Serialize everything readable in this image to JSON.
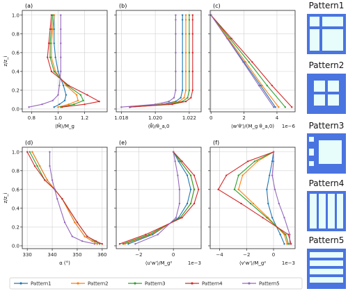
{
  "colors": {
    "Pattern1": "#1f77b4",
    "Pattern2": "#ff7f0e",
    "Pattern3": "#2ca02c",
    "Pattern4": "#d62728",
    "Pattern5": "#9467bd",
    "pattern_bg": "#4a74e0",
    "pattern_cell": "#e6fdfb"
  },
  "patterns": [
    {
      "name": "Pattern1",
      "layout": "2x2 unequal blocks"
    },
    {
      "name": "Pattern2",
      "layout": "2x2 equal blocks"
    },
    {
      "name": "Pattern3",
      "layout": "1 large + 3 small blocks"
    },
    {
      "name": "Pattern4",
      "layout": "4 vertical strips"
    },
    {
      "name": "Pattern5",
      "layout": "4 horizontal strips"
    }
  ],
  "legend": [
    "Pattern1",
    "Pattern2",
    "Pattern3",
    "Pattern4",
    "Pattern5"
  ],
  "chart_data": [
    {
      "id": "a",
      "panel_label": "(a)",
      "type": "line",
      "xlabel": "⟨M̄⟩/M_g",
      "ylabel": "z/z_i",
      "xlim": [
        0.73,
        1.37
      ],
      "ylim": [
        -0.03,
        1.05
      ],
      "xticks": [
        0.8,
        1.0,
        1.2
      ],
      "xticklabels": [
        "0.8",
        "1.0",
        "1.2"
      ],
      "yticks": [
        0.0,
        0.2,
        0.4,
        0.6,
        0.8,
        1.0
      ],
      "yticklabels": [
        "0.0",
        "0.2",
        "0.4",
        "0.6",
        "0.8",
        "1.0"
      ],
      "grid": true,
      "exponent": "",
      "series": [
        {
          "name": "Pattern1",
          "x": [
            0.97,
            1.01,
            1.05,
            1.06,
            1.04,
            1.0,
            0.98,
            0.97,
            0.97,
            0.97
          ],
          "y": [
            0.02,
            0.05,
            0.09,
            0.15,
            0.25,
            0.4,
            0.55,
            0.7,
            0.85,
            1.0
          ]
        },
        {
          "name": "Pattern2",
          "x": [
            1.0,
            1.08,
            1.15,
            1.14,
            1.06,
            0.98,
            0.95,
            0.95,
            0.96,
            0.97
          ],
          "y": [
            0.02,
            0.05,
            0.09,
            0.15,
            0.25,
            0.4,
            0.55,
            0.7,
            0.85,
            1.0
          ]
        },
        {
          "name": "Pattern3",
          "x": [
            1.02,
            1.12,
            1.19,
            1.17,
            1.07,
            0.97,
            0.94,
            0.94,
            0.95,
            0.96
          ],
          "y": [
            0.02,
            0.05,
            0.09,
            0.15,
            0.25,
            0.4,
            0.55,
            0.7,
            0.85,
            1.0
          ]
        },
        {
          "name": "Pattern4",
          "x": [
            1.03,
            1.2,
            1.31,
            1.22,
            1.08,
            0.95,
            0.92,
            0.93,
            0.94,
            0.95
          ],
          "y": [
            0.02,
            0.05,
            0.08,
            0.15,
            0.25,
            0.4,
            0.55,
            0.7,
            0.85,
            1.0
          ]
        },
        {
          "name": "Pattern5",
          "x": [
            0.78,
            0.88,
            0.96,
            1.0,
            1.01,
            1.02,
            1.02,
            1.02,
            1.02,
            1.02
          ],
          "y": [
            0.02,
            0.05,
            0.09,
            0.15,
            0.25,
            0.4,
            0.55,
            0.7,
            0.85,
            1.0
          ]
        }
      ]
    },
    {
      "id": "b",
      "panel_label": "(b)",
      "type": "line",
      "xlabel": "⟨θ̄⟩/θ_a,0",
      "ylabel": "",
      "xlim": [
        1.0177,
        1.0227
      ],
      "ylim": [
        -0.03,
        1.05
      ],
      "xticks": [
        1.018,
        1.02,
        1.022
      ],
      "xticklabels": [
        "1.018",
        "1.020",
        "1.022"
      ],
      "yticks": [
        0.0,
        0.2,
        0.4,
        0.6,
        0.8,
        1.0
      ],
      "yticklabels": [],
      "grid": true,
      "exponent": "",
      "series": [
        {
          "name": "Pattern1",
          "x": [
            1.0185,
            1.0204,
            1.0212,
            1.0215,
            1.0216,
            1.0216,
            1.0216,
            1.0216,
            1.0216,
            1.0216
          ],
          "y": [
            0.02,
            0.05,
            0.08,
            0.12,
            0.2,
            0.4,
            0.6,
            0.8,
            0.95,
            1.0
          ]
        },
        {
          "name": "Pattern2",
          "x": [
            1.0185,
            1.0206,
            1.0214,
            1.0217,
            1.0218,
            1.0218,
            1.0218,
            1.0218,
            1.0218,
            1.0218
          ],
          "y": [
            0.02,
            0.05,
            0.08,
            0.12,
            0.2,
            0.4,
            0.6,
            0.8,
            0.95,
            1.0
          ]
        },
        {
          "name": "Pattern3",
          "x": [
            1.0185,
            1.0208,
            1.0216,
            1.0219,
            1.022,
            1.022,
            1.022,
            1.022,
            1.022,
            1.022
          ],
          "y": [
            0.02,
            0.05,
            0.08,
            0.12,
            0.2,
            0.4,
            0.6,
            0.8,
            0.95,
            1.0
          ]
        },
        {
          "name": "Pattern4",
          "x": [
            1.0185,
            1.021,
            1.0218,
            1.0221,
            1.0222,
            1.0222,
            1.0222,
            1.0222,
            1.0222,
            1.0222
          ],
          "y": [
            0.02,
            0.05,
            0.08,
            0.12,
            0.2,
            0.4,
            0.6,
            0.8,
            0.95,
            1.0
          ]
        },
        {
          "name": "Pattern5",
          "x": [
            1.018,
            1.02,
            1.0208,
            1.0211,
            1.0212,
            1.0212,
            1.0212,
            1.0212,
            1.0212,
            1.0212
          ],
          "y": [
            0.02,
            0.05,
            0.08,
            0.12,
            0.2,
            0.4,
            0.6,
            0.8,
            0.95,
            1.0
          ]
        }
      ]
    },
    {
      "id": "c",
      "panel_label": "(c)",
      "type": "line",
      "xlabel": "⟨w'θ'⟩/(M_g θ_a,0)",
      "ylabel": "",
      "xlim": [
        -0.05,
        5.1
      ],
      "ylim": [
        -0.03,
        1.05
      ],
      "xticks": [
        0,
        2,
        4
      ],
      "xticklabels": [
        "0",
        "2",
        "4"
      ],
      "yticks": [
        0.0,
        0.2,
        0.4,
        0.6,
        0.8,
        1.0
      ],
      "yticklabels": [],
      "grid": true,
      "exponent": "1e−6",
      "series": [
        {
          "name": "Pattern1",
          "x": [
            3.9,
            3.0,
            2.0,
            1.0,
            0.0
          ],
          "y": [
            0.02,
            0.25,
            0.5,
            0.75,
            1.0
          ]
        },
        {
          "name": "Pattern2",
          "x": [
            4.1,
            3.1,
            2.1,
            1.05,
            0.0
          ],
          "y": [
            0.02,
            0.25,
            0.5,
            0.75,
            1.0
          ]
        },
        {
          "name": "Pattern3",
          "x": [
            4.5,
            3.4,
            2.3,
            1.15,
            0.0
          ],
          "y": [
            0.02,
            0.25,
            0.5,
            0.75,
            1.0
          ]
        },
        {
          "name": "Pattern4",
          "x": [
            4.9,
            3.7,
            2.5,
            1.25,
            0.0
          ],
          "y": [
            0.02,
            0.25,
            0.5,
            0.75,
            1.0
          ]
        },
        {
          "name": "Pattern5",
          "x": [
            3.8,
            2.9,
            1.95,
            0.98,
            0.0
          ],
          "y": [
            0.02,
            0.25,
            0.5,
            0.75,
            1.0
          ]
        }
      ]
    },
    {
      "id": "d",
      "panel_label": "(d)",
      "type": "line",
      "xlabel": "α (°)",
      "ylabel": "z/z_i",
      "xlim": [
        328,
        362
      ],
      "ylim": [
        -0.03,
        1.05
      ],
      "xticks": [
        330,
        340,
        350,
        360
      ],
      "xticklabels": [
        "330",
        "340",
        "350",
        "360"
      ],
      "yticks": [
        0.0,
        0.2,
        0.4,
        0.6,
        0.8,
        1.0
      ],
      "yticklabels": [
        "0.0",
        "0.2",
        "0.4",
        "0.6",
        "0.8",
        "1.0"
      ],
      "grid": true,
      "exponent": "",
      "series": [
        {
          "name": "Pattern1",
          "x": [
            358,
            356,
            353,
            349,
            344,
            341,
            338,
            335,
            332
          ],
          "y": [
            0.02,
            0.05,
            0.1,
            0.25,
            0.5,
            0.6,
            0.7,
            0.85,
            1.0
          ]
        },
        {
          "name": "Pattern2",
          "x": [
            358,
            356,
            353,
            349,
            344,
            341,
            338,
            335,
            332
          ],
          "y": [
            0.02,
            0.05,
            0.1,
            0.25,
            0.5,
            0.6,
            0.7,
            0.85,
            1.0
          ]
        },
        {
          "name": "Pattern3",
          "x": [
            359,
            357,
            354,
            350,
            344,
            341,
            337,
            334,
            331
          ],
          "y": [
            0.02,
            0.05,
            0.1,
            0.25,
            0.5,
            0.6,
            0.7,
            0.85,
            1.0
          ]
        },
        {
          "name": "Pattern4",
          "x": [
            360,
            357.5,
            354,
            350,
            344,
            341,
            337,
            333,
            330
          ],
          "y": [
            0.02,
            0.05,
            0.1,
            0.25,
            0.5,
            0.6,
            0.7,
            0.85,
            1.0
          ]
        },
        {
          "name": "Pattern5",
          "x": [
            357,
            352,
            348,
            345,
            342,
            341,
            340,
            339,
            339
          ],
          "y": [
            0.02,
            0.05,
            0.1,
            0.25,
            0.5,
            0.6,
            0.7,
            0.85,
            1.0
          ]
        }
      ]
    },
    {
      "id": "e",
      "panel_label": "(e)",
      "type": "line",
      "xlabel": "⟨u'w'⟩/M_g²",
      "ylabel": "",
      "xlim": [
        -3.3,
        1.6
      ],
      "ylim": [
        -0.03,
        1.05
      ],
      "xticks": [
        -2,
        0
      ],
      "xticklabels": [
        "−2",
        "0"
      ],
      "yticks": [
        0.0,
        0.2,
        0.4,
        0.6,
        0.8,
        1.0
      ],
      "yticklabels": [],
      "grid": true,
      "exponent": "1e−3",
      "series": [
        {
          "name": "Pattern1",
          "x": [
            -2.6,
            -1.2,
            0.3,
            0.8,
            1.0,
            0.8,
            0.3,
            0.0
          ],
          "y": [
            0.02,
            0.12,
            0.3,
            0.45,
            0.6,
            0.75,
            0.9,
            1.0
          ]
        },
        {
          "name": "Pattern2",
          "x": [
            -2.8,
            -1.3,
            0.4,
            1.0,
            1.2,
            1.0,
            0.4,
            0.0
          ],
          "y": [
            0.02,
            0.12,
            0.3,
            0.45,
            0.6,
            0.75,
            0.9,
            1.0
          ]
        },
        {
          "name": "Pattern3",
          "x": [
            -2.9,
            -1.4,
            0.4,
            1.0,
            1.2,
            1.0,
            0.4,
            0.0
          ],
          "y": [
            0.02,
            0.12,
            0.3,
            0.45,
            0.6,
            0.75,
            0.9,
            1.0
          ]
        },
        {
          "name": "Pattern4",
          "x": [
            -3.1,
            -1.6,
            0.5,
            1.2,
            1.45,
            1.2,
            0.5,
            0.0
          ],
          "y": [
            0.02,
            0.12,
            0.3,
            0.45,
            0.6,
            0.75,
            0.9,
            1.0
          ]
        },
        {
          "name": "Pattern5",
          "x": [
            -2.2,
            -0.9,
            0.15,
            0.35,
            0.35,
            0.25,
            0.1,
            0.0
          ],
          "y": [
            0.02,
            0.12,
            0.3,
            0.45,
            0.6,
            0.75,
            0.9,
            1.0
          ]
        }
      ]
    },
    {
      "id": "f",
      "panel_label": "(f)",
      "type": "line",
      "xlabel": "⟨v'w'⟩/M_g²",
      "ylabel": "",
      "xlim": [
        -4.7,
        1.6
      ],
      "ylim": [
        -0.03,
        1.05
      ],
      "xticks": [
        -4,
        -2,
        0
      ],
      "xticklabels": [
        "−4",
        "−2",
        "0"
      ],
      "yticks": [
        0.0,
        0.2,
        0.4,
        0.6,
        0.8,
        1.0
      ],
      "yticklabels": [],
      "grid": true,
      "exponent": "1e−3",
      "series": [
        {
          "name": "Pattern1",
          "x": [
            0.8,
            0.5,
            -0.1,
            -0.4,
            -0.5,
            -0.3,
            -0.1,
            0.0
          ],
          "y": [
            0.02,
            0.12,
            0.3,
            0.45,
            0.6,
            0.75,
            0.9,
            1.0
          ]
        },
        {
          "name": "Pattern2",
          "x": [
            1.0,
            0.8,
            -0.4,
            -1.5,
            -2.6,
            -2.3,
            -1.2,
            0.0
          ],
          "y": [
            0.02,
            0.12,
            0.3,
            0.45,
            0.6,
            0.75,
            0.9,
            1.0
          ]
        },
        {
          "name": "Pattern3",
          "x": [
            1.1,
            0.9,
            -0.5,
            -1.7,
            -2.9,
            -2.6,
            -1.4,
            0.0
          ],
          "y": [
            0.02,
            0.12,
            0.3,
            0.45,
            0.6,
            0.75,
            0.9,
            1.0
          ]
        },
        {
          "name": "Pattern4",
          "x": [
            1.3,
            1.1,
            -0.8,
            -2.4,
            -4.1,
            -3.5,
            -1.9,
            0.0
          ],
          "y": [
            0.02,
            0.12,
            0.3,
            0.45,
            0.6,
            0.75,
            0.9,
            1.0
          ]
        },
        {
          "name": "Pattern5",
          "x": [
            1.2,
            1.2,
            0.8,
            0.4,
            0.1,
            -0.1,
            0.0,
            0.0
          ],
          "y": [
            0.02,
            0.12,
            0.3,
            0.45,
            0.6,
            0.75,
            0.9,
            1.0
          ]
        }
      ]
    }
  ]
}
